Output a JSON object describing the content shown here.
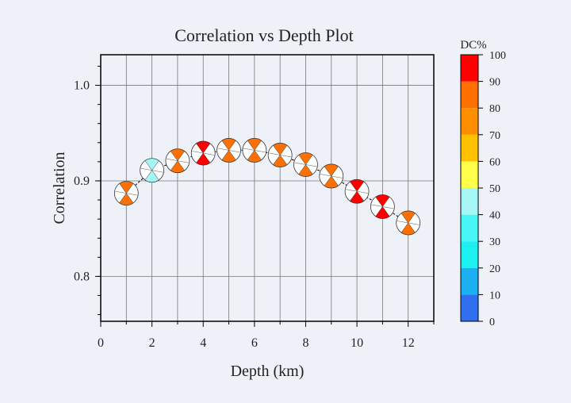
{
  "chart_data": {
    "type": "scatter",
    "title": "Correlation vs Depth Plot",
    "xlabel": "Depth (km)",
    "ylabel": "Correlation",
    "xlim": [
      0,
      13
    ],
    "ylim": [
      0.753,
      1.032
    ],
    "x_ticks": [
      0,
      2,
      4,
      6,
      8,
      10,
      12
    ],
    "x_grid": [
      1,
      2,
      3,
      4,
      5,
      6,
      7,
      8,
      9,
      10,
      11,
      12
    ],
    "y_ticks": [
      0.8,
      0.9,
      1.0
    ],
    "y_tick_labels": [
      "0.8",
      "0.9",
      "1.0"
    ],
    "grid": true,
    "marker": "focal-mechanism beachball",
    "points": [
      {
        "depth": 1,
        "correlation": 0.887,
        "dc_percent": 85
      },
      {
        "depth": 2,
        "correlation": 0.911,
        "dc_percent": 45
      },
      {
        "depth": 3,
        "correlation": 0.921,
        "dc_percent": 85
      },
      {
        "depth": 4,
        "correlation": 0.929,
        "dc_percent": 95
      },
      {
        "depth": 5,
        "correlation": 0.932,
        "dc_percent": 85
      },
      {
        "depth": 6,
        "correlation": 0.932,
        "dc_percent": 85
      },
      {
        "depth": 7,
        "correlation": 0.927,
        "dc_percent": 85
      },
      {
        "depth": 8,
        "correlation": 0.917,
        "dc_percent": 85
      },
      {
        "depth": 9,
        "correlation": 0.905,
        "dc_percent": 85
      },
      {
        "depth": 10,
        "correlation": 0.889,
        "dc_percent": 95
      },
      {
        "depth": 11,
        "correlation": 0.873,
        "dc_percent": 95
      },
      {
        "depth": 12,
        "correlation": 0.856,
        "dc_percent": 85
      }
    ],
    "colorbar": {
      "title": "DC%",
      "range": [
        0,
        100
      ],
      "ticks": [
        0,
        10,
        20,
        30,
        40,
        50,
        60,
        70,
        80,
        90,
        100
      ],
      "bins": [
        {
          "from": 0,
          "to": 10,
          "color": "#2f6ff0"
        },
        {
          "from": 10,
          "to": 20,
          "color": "#1cb0f0"
        },
        {
          "from": 20,
          "to": 30,
          "color": "#1cf0f0"
        },
        {
          "from": 30,
          "to": 40,
          "color": "#48f6f6"
        },
        {
          "from": 40,
          "to": 50,
          "color": "#a6f6f6"
        },
        {
          "from": 50,
          "to": 60,
          "color": "#ffff4a"
        },
        {
          "from": 60,
          "to": 70,
          "color": "#ffc000"
        },
        {
          "from": 70,
          "to": 80,
          "color": "#ff8f00"
        },
        {
          "from": 80,
          "to": 90,
          "color": "#ff7000"
        },
        {
          "from": 90,
          "to": 100,
          "color": "#ff0000"
        }
      ]
    }
  }
}
